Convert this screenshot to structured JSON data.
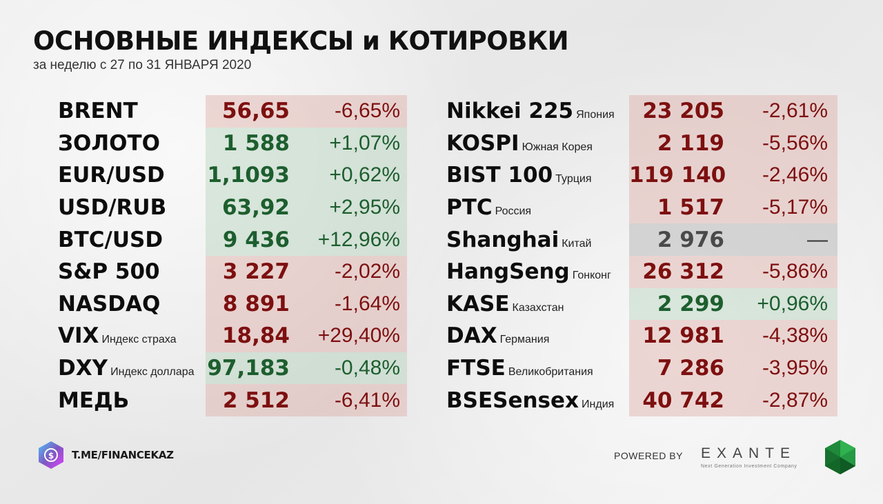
{
  "header": {
    "title": "ОСНОВНЫЕ ИНДЕКСЫ и КОТИРОВКИ",
    "subtitle": "за неделю с 27 по 31 ЯНВАРЯ 2020"
  },
  "left_table": [
    {
      "name": "BRENT",
      "sub": "",
      "value": "56,65",
      "change": "-6,65%",
      "trend": "down"
    },
    {
      "name": "ЗОЛОТО",
      "sub": "",
      "value": "1 588",
      "change": "+1,07%",
      "trend": "up"
    },
    {
      "name": "EUR/USD",
      "sub": "",
      "value": "1,1093",
      "change": "+0,62%",
      "trend": "up"
    },
    {
      "name": "USD/RUB",
      "sub": "",
      "value": "63,92",
      "change": "+2,95%",
      "trend": "up"
    },
    {
      "name": "BTC/USD",
      "sub": "",
      "value": "9 436",
      "change": "+12,96%",
      "trend": "up"
    },
    {
      "name": "S&P 500",
      "sub": "",
      "value": "3 227",
      "change": "-2,02%",
      "trend": "down"
    },
    {
      "name": "NASDAQ",
      "sub": "",
      "value": "8 891",
      "change": "-1,64%",
      "trend": "down"
    },
    {
      "name": "VIX",
      "sub": "Индекс страха",
      "value": "18,84",
      "change": "+29,40%",
      "trend": "down"
    },
    {
      "name": "DXY",
      "sub": "Индекс доллара",
      "value": "97,183",
      "change": "-0,48%",
      "trend": "up"
    },
    {
      "name": "МЕДЬ",
      "sub": "",
      "value": "2 512",
      "change": "-6,41%",
      "trend": "down"
    }
  ],
  "right_table": [
    {
      "name": "Nikkei 225",
      "sub": "Япония",
      "value": "23 205",
      "change": "-2,61%",
      "trend": "down"
    },
    {
      "name": "KOSPI",
      "sub": "Южная Корея",
      "value": "2 119",
      "change": "-5,56%",
      "trend": "down"
    },
    {
      "name": "BIST 100",
      "sub": "Турция",
      "value": "119 140",
      "change": "-2,46%",
      "trend": "down"
    },
    {
      "name": "PTC",
      "sub": "Россия",
      "value": "1 517",
      "change": "-5,17%",
      "trend": "down"
    },
    {
      "name": "Shanghai",
      "sub": "Китай",
      "value": "2 976",
      "change": "—",
      "trend": "flat"
    },
    {
      "name": "HangSeng",
      "sub": "Гонконг",
      "value": "26 312",
      "change": "-5,86%",
      "trend": "down"
    },
    {
      "name": "KASE",
      "sub": "Казахстан",
      "value": "2 299",
      "change": "+0,96%",
      "trend": "up"
    },
    {
      "name": "DAX",
      "sub": "Германия",
      "value": "12 981",
      "change": "-4,38%",
      "trend": "down"
    },
    {
      "name": "FTSE",
      "sub": "Великобритания",
      "value": "7 286",
      "change": "-3,95%",
      "trend": "down"
    },
    {
      "name": "BSESensex",
      "sub": "Индия",
      "value": "40 742",
      "change": "-2,87%",
      "trend": "down"
    }
  ],
  "footer": {
    "link": "T.ME/FINANCEKAZ",
    "powered_by": "POWERED BY",
    "brand": "EXANTE",
    "tagline": "Next Generation Investment Company",
    "logo_icon": "hexagon-coin-icon",
    "brand_icon": "green-hexagon-icon"
  },
  "colors": {
    "up_bg": "#a8cdb2",
    "down_bg": "#dca59e",
    "flat_bg": "#aaaaaa",
    "up_text": "#1d5e2e",
    "down_text": "#7d1010"
  }
}
